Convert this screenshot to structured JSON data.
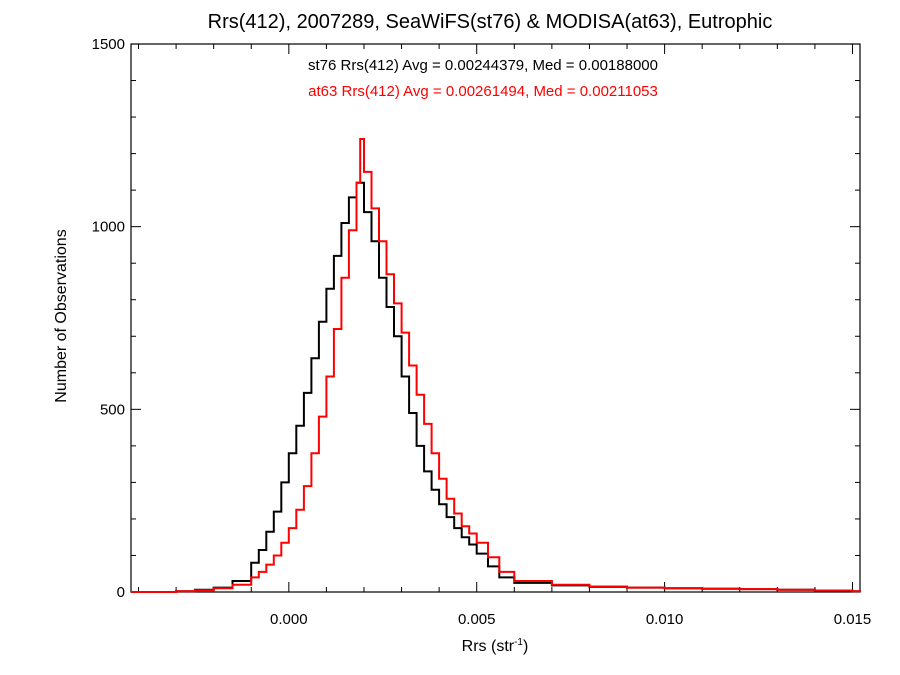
{
  "chart_data": {
    "type": "line",
    "title": "Rrs(412), 2007289, SeaWiFS(st76) & MODISA(at63), Eutrophic",
    "xlabel_base": "Rrs (str",
    "xlabel_sup": "-1",
    "xlabel_close": ")",
    "ylabel": "Number of Observations",
    "xlim": [
      -0.0042,
      0.0152
    ],
    "ylim": [
      0,
      1500
    ],
    "xticks": [
      0.0,
      0.005,
      0.01,
      0.015
    ],
    "xtick_labels": [
      "0.000",
      "0.005",
      "0.010",
      "0.015"
    ],
    "yticks": [
      0,
      500,
      1000,
      1500
    ],
    "ytick_labels": [
      "0",
      "500",
      "1000",
      "1500"
    ],
    "annotations": [
      {
        "text": "st76 Rrs(412) Avg = 0.00244379, Med = 0.00188000",
        "color": "#000000"
      },
      {
        "text": "at63 Rrs(412) Avg = 0.00261494, Med = 0.00211053",
        "color": "#ff0000"
      }
    ],
    "series": [
      {
        "name": "st76",
        "color": "#000000",
        "x": [
          -0.0042,
          -0.003,
          -0.0025,
          -0.002,
          -0.0015,
          -0.001,
          -0.0008,
          -0.0006,
          -0.0004,
          -0.0002,
          0.0,
          0.0002,
          0.0004,
          0.0006,
          0.0008,
          0.001,
          0.0012,
          0.0014,
          0.0016,
          0.0018,
          0.002,
          0.0022,
          0.0024,
          0.0026,
          0.0028,
          0.003,
          0.0032,
          0.0034,
          0.0036,
          0.0038,
          0.004,
          0.0042,
          0.0044,
          0.0046,
          0.0048,
          0.005,
          0.0053,
          0.0056,
          0.006,
          0.007,
          0.008,
          0.009,
          0.01,
          0.011,
          0.012,
          0.013,
          0.014,
          0.015,
          0.0152
        ],
        "y": [
          0,
          2,
          6,
          12,
          30,
          80,
          115,
          165,
          220,
          300,
          380,
          455,
          545,
          640,
          740,
          830,
          920,
          1010,
          1080,
          1120,
          1040,
          960,
          860,
          780,
          700,
          590,
          490,
          400,
          330,
          280,
          240,
          205,
          175,
          150,
          130,
          105,
          70,
          40,
          25,
          18,
          14,
          12,
          10,
          9,
          8,
          6,
          4,
          2,
          1
        ]
      },
      {
        "name": "at63",
        "color": "#ff0000",
        "x": [
          -0.0042,
          -0.003,
          -0.0025,
          -0.002,
          -0.0015,
          -0.001,
          -0.0008,
          -0.0006,
          -0.0004,
          -0.0002,
          0.0,
          0.0002,
          0.0004,
          0.0006,
          0.0008,
          0.001,
          0.0012,
          0.0014,
          0.0016,
          0.0018,
          0.0019,
          0.002,
          0.0022,
          0.0024,
          0.0026,
          0.0028,
          0.003,
          0.0032,
          0.0034,
          0.0036,
          0.0038,
          0.004,
          0.0042,
          0.0044,
          0.0046,
          0.0048,
          0.005,
          0.0053,
          0.0056,
          0.006,
          0.007,
          0.008,
          0.009,
          0.01,
          0.011,
          0.012,
          0.013,
          0.014,
          0.015,
          0.0152
        ],
        "y": [
          0,
          2,
          5,
          10,
          20,
          40,
          55,
          75,
          100,
          135,
          175,
          225,
          290,
          380,
          480,
          590,
          720,
          860,
          990,
          1120,
          1240,
          1150,
          1050,
          960,
          870,
          790,
          710,
          620,
          540,
          460,
          380,
          310,
          255,
          215,
          180,
          160,
          135,
          95,
          55,
          30,
          20,
          15,
          12,
          10,
          9,
          8,
          6,
          4,
          2,
          1
        ]
      }
    ]
  }
}
